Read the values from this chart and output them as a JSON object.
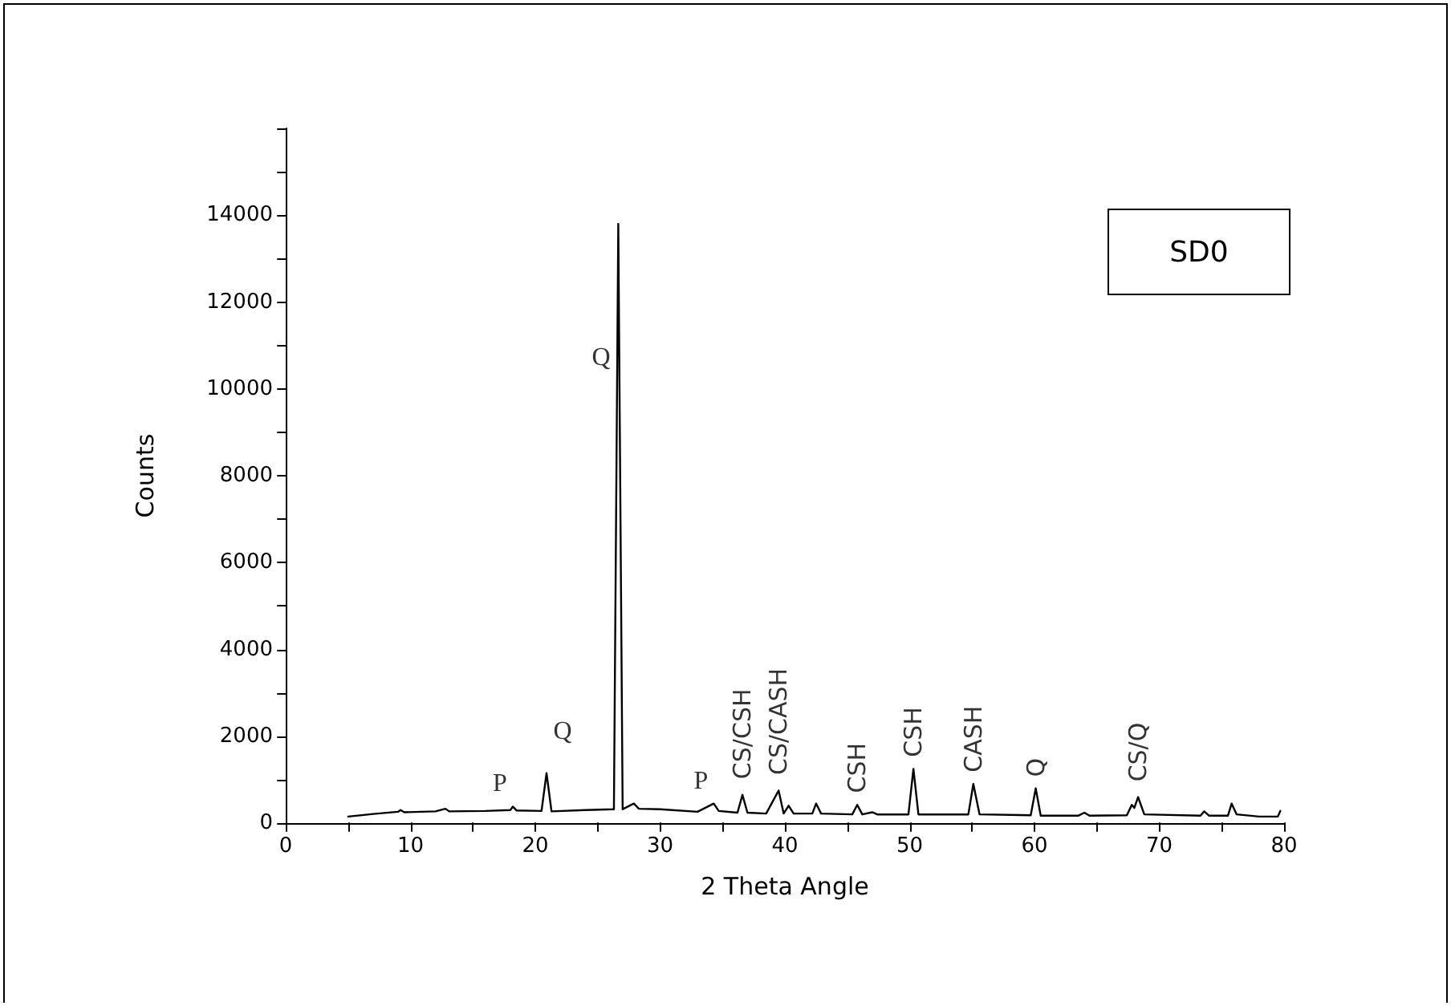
{
  "chart_data": {
    "type": "line",
    "xlabel": "2 Theta Angle",
    "ylabel": "Counts",
    "x": [
      5,
      7,
      9,
      9.2,
      9.5,
      12,
      12.8,
      13.1,
      16,
      18,
      18.2,
      18.5,
      20.5,
      20.9,
      21.3,
      24,
      26.3,
      26.65,
      27.0,
      27.9,
      28.3,
      30,
      33,
      34.3,
      34.7,
      36.2,
      36.6,
      37.0,
      38.5,
      39.5,
      39.9,
      40.3,
      40.7,
      42.2,
      42.5,
      42.9,
      45.4,
      45.8,
      46.2,
      47,
      47.4,
      49.9,
      50.3,
      50.7,
      54.7,
      55.1,
      55.6,
      59.7,
      60.1,
      60.5,
      63.5,
      64,
      64.4,
      67.4,
      67.8,
      68.0,
      68.3,
      68.8,
      73.3,
      73.6,
      74,
      75.5,
      75.8,
      76.2,
      78,
      79.5,
      79.7
    ],
    "series": [
      {
        "color": "#000000",
        "values": [
          150,
          210,
          260,
          300,
          250,
          270,
          330,
          270,
          280,
          300,
          380,
          290,
          280,
          1150,
          270,
          300,
          320,
          13800,
          320,
          450,
          330,
          320,
          260,
          450,
          280,
          240,
          650,
          240,
          220,
          750,
          220,
          400,
          220,
          220,
          450,
          220,
          200,
          420,
          200,
          250,
          200,
          200,
          1250,
          200,
          200,
          900,
          200,
          180,
          800,
          170,
          170,
          240,
          170,
          180,
          420,
          350,
          600,
          200,
          170,
          270,
          170,
          170,
          450,
          200,
          150,
          150,
          280
        ]
      }
    ],
    "xlim": [
      0,
      80
    ],
    "xticks": [
      0,
      {
        "value": 5,
        "label": null
      },
      10,
      {
        "value": 15,
        "label": null
      },
      20,
      {
        "value": 25,
        "label": null
      },
      30,
      {
        "value": 35,
        "label": null
      },
      40,
      {
        "value": 45,
        "label": null
      },
      50,
      {
        "value": 55,
        "label": null
      },
      60,
      {
        "value": 65,
        "label": null
      },
      70,
      {
        "value": 75,
        "label": null
      },
      80
    ],
    "ylim": [
      0,
      16000
    ],
    "yticks": [
      0,
      {
        "value": 1000,
        "label": null
      },
      2000,
      {
        "value": 3000,
        "label": null
      },
      4000,
      {
        "value": 5000,
        "label": null
      },
      6000,
      {
        "value": 7000,
        "label": null
      },
      8000,
      {
        "value": 9000,
        "label": null
      },
      10000,
      {
        "value": 11000,
        "label": null
      },
      12000,
      {
        "value": 13000,
        "label": null
      },
      14000,
      {
        "value": 15000,
        "label": null
      },
      {
        "value": 16000,
        "label": null
      }
    ],
    "grid": false,
    "marker": "none",
    "line_style": "solid",
    "annotations": [
      "SD0",
      {
        "text": "Q",
        "x": 26.56,
        "y": 10200
      },
      {
        "text": "Q",
        "x": 20.9,
        "y": 1150
      },
      {
        "text": "P",
        "x": 18.2,
        "y": 380
      },
      {
        "text": "P",
        "x": 34.3,
        "y": 450
      },
      {
        "text": "CS/CSH",
        "x": 36.6,
        "y": 650
      },
      {
        "text": "CS/CASH",
        "x": 39.5,
        "y": 750
      },
      {
        "text": "CSH",
        "x": 45.8,
        "y": 420
      },
      {
        "text": "CSH",
        "x": 50.3,
        "y": 1250
      },
      {
        "text": "CASH",
        "x": 55.1,
        "y": 900
      },
      {
        "text": "Q",
        "x": 60.1,
        "y": 800
      },
      {
        "text": "CS/Q",
        "x": 68.3,
        "y": 600
      }
    ]
  }
}
